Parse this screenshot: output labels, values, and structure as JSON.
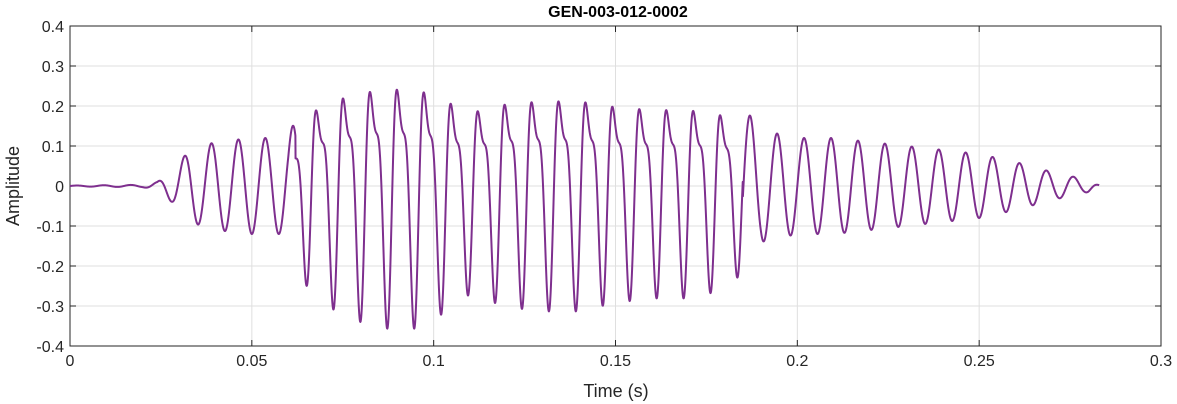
{
  "chart_data": {
    "type": "line",
    "title": "GEN-003-012-0002",
    "xlabel": "Time (s)",
    "ylabel": "Amplitude",
    "xlim": [
      0,
      0.3
    ],
    "ylim": [
      -0.4,
      0.4
    ],
    "xticks": [
      0,
      0.05,
      0.1,
      0.15,
      0.2,
      0.25,
      0.3
    ],
    "xtick_labels": [
      "0",
      "0.05",
      "0.1",
      "0.15",
      "0.2",
      "0.25",
      "0.3"
    ],
    "yticks": [
      -0.4,
      -0.3,
      -0.2,
      -0.1,
      0,
      0.1,
      0.2,
      0.3,
      0.4
    ],
    "ytick_labels": [
      "-0.4",
      "-0.3",
      "-0.2",
      "-0.1",
      "0",
      "0.1",
      "0.2",
      "0.3",
      "0.4"
    ],
    "grid": true,
    "line_color": "#7E2F8E",
    "series": [
      {
        "frequency_hz": 135,
        "t_end": 0.283,
        "envelope": [
          [
            0.0,
            0.001
          ],
          [
            0.02,
            0.003
          ],
          [
            0.024,
            0.01
          ],
          [
            0.028,
            0.04
          ],
          [
            0.033,
            0.09
          ],
          [
            0.04,
            0.11
          ],
          [
            0.05,
            0.12
          ],
          [
            0.06,
            0.12
          ],
          [
            0.062,
            0.17
          ],
          [
            0.066,
            0.25
          ],
          [
            0.075,
            0.3
          ],
          [
            0.085,
            0.33
          ],
          [
            0.095,
            0.33
          ],
          [
            0.1,
            0.31
          ],
          [
            0.11,
            0.25
          ],
          [
            0.12,
            0.28
          ],
          [
            0.13,
            0.29
          ],
          [
            0.14,
            0.29
          ],
          [
            0.15,
            0.27
          ],
          [
            0.16,
            0.26
          ],
          [
            0.17,
            0.26
          ],
          [
            0.18,
            0.24
          ],
          [
            0.185,
            0.2
          ],
          [
            0.19,
            0.14
          ],
          [
            0.2,
            0.12
          ],
          [
            0.21,
            0.12
          ],
          [
            0.22,
            0.11
          ],
          [
            0.23,
            0.1
          ],
          [
            0.24,
            0.09
          ],
          [
            0.25,
            0.08
          ],
          [
            0.26,
            0.06
          ],
          [
            0.27,
            0.035
          ],
          [
            0.28,
            0.015
          ],
          [
            0.283,
            0.002
          ]
        ]
      }
    ]
  }
}
